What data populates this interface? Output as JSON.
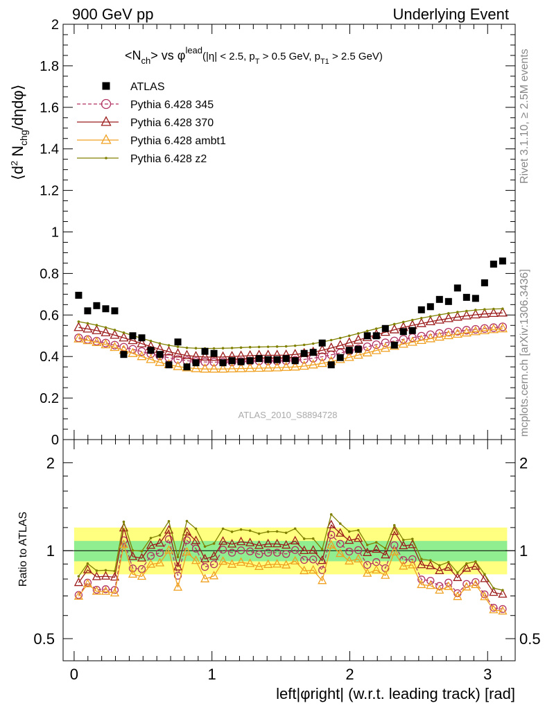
{
  "header": {
    "left": "900 GeV pp",
    "right": "Underlying Event"
  },
  "side_text": {
    "rivet": "Rivet 3.1.10, ≥ 2.5M events",
    "mcplots": "mcplots.cern.ch [arXiv:1306.3436]"
  },
  "chart_data": [
    {
      "type": "scatter",
      "title": "<N_ch> vs φ^lead (|η| < 2.5, p_T > 0.5 GeV, p_T1 > 2.5 GeV)",
      "ylabel": "⟨d² N_chg/dηdφ⟩",
      "xlabel": "left|φright| (w.r.t. leading track) [rad]",
      "watermark": "ATLAS_2010_S8894728",
      "xlim": [
        -0.08,
        3.2
      ],
      "ylim": [
        0,
        2
      ],
      "yticks": [
        0,
        0.2,
        0.4,
        0.6,
        0.8,
        1,
        1.2,
        1.4,
        1.6,
        1.8,
        2
      ],
      "ytick_labels": [
        "0",
        "0.2",
        "0.4",
        "0.6",
        "0.8",
        "1",
        "1.2",
        "1.4",
        "1.6",
        "1.8",
        "2"
      ],
      "legend_position": "top-left",
      "x": [
        0.0327,
        0.0982,
        0.1636,
        0.2291,
        0.2945,
        0.36,
        0.4254,
        0.4909,
        0.5563,
        0.6218,
        0.6872,
        0.7527,
        0.8181,
        0.8836,
        0.949,
        1.0145,
        1.0799,
        1.1454,
        1.2108,
        1.2763,
        1.3417,
        1.4072,
        1.4726,
        1.5381,
        1.6035,
        1.669,
        1.7344,
        1.7999,
        1.8653,
        1.9308,
        1.9962,
        2.0617,
        2.1271,
        2.1926,
        2.258,
        2.3235,
        2.3889,
        2.4544,
        2.5198,
        2.5853,
        2.6507,
        2.7162,
        2.7816,
        2.8471,
        2.9125,
        2.978,
        3.0434,
        3.1089
      ],
      "series": [
        {
          "name": "ATLAS",
          "color": "#000000",
          "marker": "square",
          "values": [
            0.695,
            0.62,
            0.645,
            0.63,
            0.62,
            0.41,
            0.5,
            0.49,
            0.43,
            0.41,
            0.36,
            0.47,
            0.35,
            0.37,
            0.425,
            0.415,
            0.37,
            0.38,
            0.375,
            0.38,
            0.39,
            0.385,
            0.385,
            0.39,
            0.38,
            0.415,
            0.42,
            0.465,
            0.36,
            0.395,
            0.43,
            0.435,
            0.5,
            0.5,
            0.535,
            0.455,
            0.52,
            0.525,
            0.625,
            0.64,
            0.675,
            0.665,
            0.73,
            0.685,
            0.68,
            0.755,
            0.845,
            0.86
          ]
        },
        {
          "name": "Pythia 6.428 345",
          "color": "#b03060",
          "marker": "circle",
          "dashed": true,
          "values": [
            0.49,
            0.482,
            0.474,
            0.465,
            0.455,
            0.445,
            0.435,
            0.424,
            0.413,
            0.403,
            0.394,
            0.386,
            0.38,
            0.376,
            0.374,
            0.373,
            0.373,
            0.374,
            0.376,
            0.378,
            0.379,
            0.379,
            0.379,
            0.38,
            0.382,
            0.386,
            0.392,
            0.399,
            0.408,
            0.417,
            0.427,
            0.437,
            0.447,
            0.457,
            0.466,
            0.475,
            0.483,
            0.491,
            0.498,
            0.505,
            0.511,
            0.517,
            0.522,
            0.527,
            0.531,
            0.535,
            0.539,
            0.543
          ]
        },
        {
          "name": "Pythia 6.428 370",
          "color": "#9b1b1b",
          "marker": "triangle",
          "values": [
            0.54,
            0.533,
            0.525,
            0.515,
            0.503,
            0.49,
            0.477,
            0.462,
            0.448,
            0.435,
            0.423,
            0.413,
            0.405,
            0.4,
            0.398,
            0.397,
            0.398,
            0.4,
            0.402,
            0.404,
            0.406,
            0.406,
            0.406,
            0.407,
            0.41,
            0.415,
            0.421,
            0.43,
            0.441,
            0.453,
            0.466,
            0.479,
            0.492,
            0.505,
            0.517,
            0.529,
            0.54,
            0.55,
            0.559,
            0.568,
            0.576,
            0.583,
            0.59,
            0.596,
            0.601,
            0.605,
            0.608,
            0.61
          ]
        },
        {
          "name": "Pythia 6.428 ambt1",
          "color": "#f0a020",
          "marker": "triangle",
          "values": [
            0.485,
            0.477,
            0.468,
            0.457,
            0.444,
            0.43,
            0.415,
            0.4,
            0.386,
            0.372,
            0.361,
            0.352,
            0.346,
            0.342,
            0.34,
            0.34,
            0.34,
            0.341,
            0.342,
            0.343,
            0.344,
            0.345,
            0.346,
            0.348,
            0.35,
            0.354,
            0.36,
            0.367,
            0.376,
            0.386,
            0.396,
            0.407,
            0.418,
            0.429,
            0.44,
            0.45,
            0.46,
            0.469,
            0.478,
            0.486,
            0.494,
            0.501,
            0.508,
            0.514,
            0.52,
            0.525,
            0.53,
            0.534
          ]
        },
        {
          "name": "Pythia 6.428 z2",
          "color": "#808000",
          "marker": "dot",
          "values": [
            0.568,
            0.56,
            0.551,
            0.54,
            0.528,
            0.515,
            0.501,
            0.488,
            0.475,
            0.463,
            0.454,
            0.447,
            0.442,
            0.44,
            0.439,
            0.439,
            0.44,
            0.441,
            0.443,
            0.445,
            0.446,
            0.447,
            0.448,
            0.449,
            0.452,
            0.456,
            0.462,
            0.47,
            0.479,
            0.489,
            0.5,
            0.511,
            0.523,
            0.534,
            0.545,
            0.556,
            0.566,
            0.576,
            0.585,
            0.593,
            0.601,
            0.608,
            0.614,
            0.619,
            0.624,
            0.627,
            0.629,
            0.63
          ]
        }
      ]
    },
    {
      "type": "line",
      "ylabel": "Ratio to ATLAS",
      "xlabel": "left|φright| (w.r.t. leading track) [rad]",
      "xlim": [
        -0.08,
        3.2
      ],
      "ylim": [
        0.42,
        2.4
      ],
      "yscale": "log",
      "yticks": [
        0.5,
        1,
        2
      ],
      "ytick_labels": [
        "0.5",
        "1",
        "2"
      ],
      "xticks": [
        0,
        1,
        2,
        3
      ],
      "xtick_labels": [
        "0",
        "1",
        "2",
        "3"
      ],
      "band_colors": {
        "inner": "#90ee90",
        "outer": "#ffff80"
      },
      "band_inner": [
        0.92,
        1.08
      ],
      "band_outer": [
        0.83,
        1.2
      ]
    }
  ]
}
